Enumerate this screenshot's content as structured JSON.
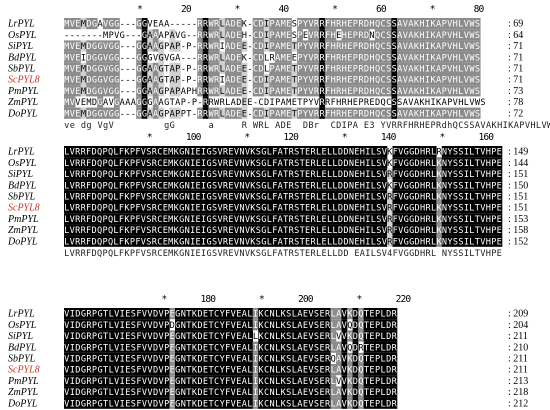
{
  "blocks": [
    {
      "ruler": "               *        20         *        40         *        60         *        80",
      "rows": [
        {
          "name": "LrPYL",
          "seq": "MVEMDGAVGG---GGVEAA-----RRWRLADEK-CDIPAMESPYVRRFHRHEPRDHQCSSAVAKHIKAPVHLVWS",
          "count": "69",
          "hl": false
        },
        {
          "name": "OsPYL",
          "seq": "-------MPVG---GAAAPAVG--RRWRLADEH-CDIPAMESPEVRRFHEHEPRDNQCSSAVAKHIKAPVHLVWS",
          "count": "64",
          "hl": false
        },
        {
          "name": "SiPYL",
          "seq": "MVEMDGGVGG---GGAAGPAP-P-RRWRIADEE-CDIPAMETPYVRRFHRHEPRDHQCSSAVAKHIKAPVHLVWS",
          "count": "71",
          "hl": false
        },
        {
          "name": "BdPYL",
          "seq": "MVEIDGGVGG---GGGVGVGA---RRWRLADEK-CDLRAMEEPYVRRFHRHEPRDHQCSSAVAKHIKAPVHLVWS",
          "count": "71",
          "hl": false
        },
        {
          "name": "SbPYL",
          "seq": "MVEMDGGVGG---GGAAGTAP-P-RRWRLADEE-CDLPAMETPYVRRFHRHEPRDHQCSSAVAKHIKAPVHLVWS",
          "count": "71",
          "hl": false
        },
        {
          "name": "ScPYL8",
          "seq": "MVEMDGGVGG---GGAAGTAP-P-RRWRIADEE-CDIPAMETPYVRRFHRHEPRDHQCSSAVAKHIKAPVHLVWS",
          "count": "71",
          "hl": true
        },
        {
          "name": "PmPYL",
          "seq": "MVEMDGGVGG---GGAAGPAPAPHRRWRLADEE-CDIPAMETPYVRRFHRHEPRDHQCSSAVAKHIKAPVHLVWS",
          "count": "73",
          "hl": false
        },
        {
          "name": "ZmPYL",
          "seq": "MVVEMDGAVGAAAGGGAAGTAP-P-RRWRLADEE-CDIPAMETPYVRRFHRHEPREDQCSSAVAKHIKAPVHLVWS",
          "count": "78",
          "hl": false
        },
        {
          "name": "DoPYL",
          "seq": "MVEMDGGVGG---GGAAGPAPPT-RRWRLADEE-CDIPAMETPYVRRFHRHEPRDHQCSSAVAKHIKAPVHLVWS",
          "count": "72",
          "hl": false
        }
      ],
      "consensus": "ve dg VgV         gG      a     R WRL ADE  DBr  CDIPA E3 YVRRFHRHEPRdhQCSSAVAKHIKAPVHLVWS"
    },
    {
      "ruler": "                 *       100         *       120         *       140         *       160",
      "rows": [
        {
          "name": "LrPYL",
          "seq": "LVRRFDQPQLFKPFVSRCEMKGNIEIGSVREVNVKSGLFATRSTERLELLDDNEHILSVKFVGGDHRLRNYSSILTVHPE",
          "count": "149",
          "hl": false
        },
        {
          "name": "OsPYL",
          "seq": "LVRRFDQPQLFKPFVSRCEMKGNIEIGSVREVNVKSGLFATRSTERLELLDDNEHILSVKFVGGDHRLKNYSSILTVHPE",
          "count": "144",
          "hl": false
        },
        {
          "name": "SiPYL",
          "seq": "LVRRFDQPQLFKPFVSRCEMKGNIEIGSVREVNVKSGLFATRSTERLELLDDNEHILSVRFVGGDHRLKNYSSILTVHPE",
          "count": "151",
          "hl": false
        },
        {
          "name": "BdPYL",
          "seq": "LVRRFDQPQLFKPFVSRCEMKGNIEIGSVREVNVKSGLFATRSTERLELLDDNEHILSVKFVGGDHRLKNYSSILTVHPE",
          "count": "150",
          "hl": false
        },
        {
          "name": "SbPYL",
          "seq": "LVRRFDQPQLFKPFVSRCEMKGNIEIGSVREVNVKSGLFATRSTERLELLDDNEHILSVRFVGGDHRLKNYSSILTVHPE",
          "count": "151",
          "hl": false
        },
        {
          "name": "ScPYL8",
          "seq": "LVRRFDQPQLFKPFVSRCEMKGNIEIGSVREVNVKSGLFATRSTERLELLDDNEHILSVRFVGGDHRLKNYSSILTVHPE",
          "count": "151",
          "hl": true
        },
        {
          "name": "PmPYL",
          "seq": "LVRRFDQPQLFKPFVSRCEMKGNIEIGSVREVNVKSGLFATRSTERLELLDDNEHILSVRFVGGDHRLKNYSSILTVHPE",
          "count": "153",
          "hl": false
        },
        {
          "name": "ZmPYL",
          "seq": "LVRRFDQPQLFKPFVSRCEMKGNIEIGSVREVNVKSGLFATRSTERLELLDDNEHILSVRFVGGDHRLKNYSSILTVHPE",
          "count": "158",
          "hl": false
        },
        {
          "name": "DoPYL",
          "seq": "LVRRFDQPQLFKPFVSRCEMKGNIEIGSVREVNVKSGLFATRSTERLELLDDNEHILSVRFVGGDHRLKNYSSILTVHPE",
          "count": "152",
          "hl": false
        }
      ],
      "consensus": "LVRRFDQPQLFKPFVSRCEMKGNIEIGSVREVNVKSGLFATRSTERLELLDD EAILSV4FVGGDHRL NYSSILTVHPE"
    },
    {
      "ruler": "                    *       180         *       200         *       220",
      "rows": [
        {
          "name": "LrPYL",
          "seq": "VIDGRPGTLVIESFVVDVPEGNTKDETCYFVEALIKCNLKSLAEVSERLAVKDQTEPLDR",
          "count": "209",
          "hl": false
        },
        {
          "name": "OsPYL",
          "seq": "VIDGRPGTLVIESFVVDVPDGNTKDETCYFVEALIKCNLKSLAEVSERLAVQDQTEPLDR",
          "count": "204",
          "hl": false
        },
        {
          "name": "SiPYL",
          "seq": "VIDGRPGTLVIESFVVDVPEGNTKDETCYFVEALLKCNLKSLAEVSERLVVKDQTEPLDR",
          "count": "211",
          "hl": false
        },
        {
          "name": "BdPYL",
          "seq": "VIDGRPGTLVIESFVVDVPEGNTKDETCYFVEALIKCNLKSLAEVSERLAVQDRTEPLDR",
          "count": "210",
          "hl": false
        },
        {
          "name": "SbPYL",
          "seq": "VIDGRPGTLVIESFVVDVPEGNTKDETCYFVEALIKCNLKSLAEVSERQAVKDQTEPLDR",
          "count": "211",
          "hl": false
        },
        {
          "name": "ScPYL8",
          "seq": "VIDGRPGTLVIESFVVDVPEGNTKDETCYFVEALIKCNLKSLAEVSERLAVKDQTEPLDR",
          "count": "211",
          "hl": true
        },
        {
          "name": "PmPYL",
          "seq": "VIDGRPGTLVIESFVVDVPEGNTKDETCYFVEALIKCNLKSLAEVSERLVVKDQTEPLDR",
          "count": "213",
          "hl": false
        },
        {
          "name": "ZmPYL",
          "seq": "VIDGRPGTLVIESFVVDVPEGNTKDETCYFVEALIKCNLKSLAEVSERLAVKDQTEPLDR",
          "count": "218",
          "hl": false
        },
        {
          "name": "DoPYL",
          "seq": "VIDGRPGTLVIESFVVDVPEGNTKDETCYFVEALIKCNLKSLAEVSERLAVKDQTEPLDR",
          "count": "212",
          "hl": false
        }
      ],
      "consensus": "VIdGRPGTLVIESFVVDVPE GNTKDETCYFVEAL6KCNL4SLAEVSE  V DQTEPLDR"
    }
  ],
  "colors": {
    "identical": "#000000",
    "similar": "#8c8c8c",
    "weak": "#d0d0d0",
    "highlight_name": "#c0392b"
  }
}
